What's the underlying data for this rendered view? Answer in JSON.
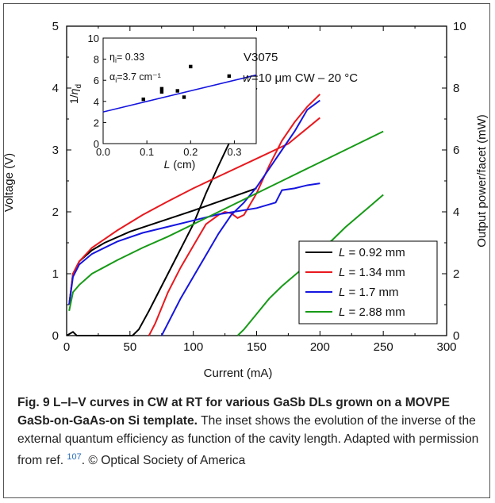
{
  "chart_data": [
    {
      "type": "line",
      "annotation": "V3075",
      "annotation2": "w=10 μm CW – 20 °C",
      "xlabel": "Current (mA)",
      "ylabel_left": "Voltage (V)",
      "ylabel_right": "Output power/facet (mW)",
      "xlim": [
        0,
        300
      ],
      "ylim_left": [
        0,
        5
      ],
      "ylim_right": [
        0,
        10
      ],
      "xticks": [
        "0",
        "50",
        "100",
        "150",
        "200",
        "250",
        "300"
      ],
      "yticks_left": [
        "0",
        "1",
        "2",
        "3",
        "4",
        "5"
      ],
      "yticks_right": [
        "0",
        "2",
        "4",
        "6",
        "8",
        "10"
      ],
      "legend_position": "lower-right",
      "series": [
        {
          "name": "L = 0.92 mm",
          "color": "#000000",
          "voltage": {
            "x": [
              2,
              5,
              10,
              20,
              30,
              50,
              75,
              100,
              125,
              150
            ],
            "y": [
              0.5,
              1.0,
              1.2,
              1.38,
              1.5,
              1.68,
              1.85,
              2.02,
              2.2,
              2.38
            ]
          },
          "power": {
            "x": [
              0,
              5,
              8,
              52,
              57,
              65,
              80,
              90,
              100,
              110,
              120,
              135,
              150
            ],
            "y": [
              0.0,
              0.12,
              0.0,
              0.0,
              0.2,
              0.8,
              2.0,
              2.8,
              3.6,
              4.6,
              5.5,
              6.8,
              8.0
            ]
          }
        },
        {
          "name": "L = 1.34 mm",
          "color": "#e8191e",
          "voltage": {
            "x": [
              2,
              5,
              10,
              20,
              40,
              60,
              80,
              100,
              125,
              150,
              175,
              200
            ],
            "y": [
              0.5,
              1.0,
              1.2,
              1.42,
              1.7,
              1.95,
              2.17,
              2.38,
              2.62,
              2.86,
              3.1,
              3.52
            ]
          },
          "power": {
            "x": [
              65,
              70,
              80,
              90,
              100,
              110,
              120,
              125,
              130,
              135,
              140,
              150,
              160,
              170,
              180,
              190,
              200
            ],
            "y": [
              0.0,
              0.4,
              1.4,
              2.2,
              2.9,
              3.6,
              3.9,
              4.0,
              3.95,
              3.8,
              3.9,
              4.6,
              5.5,
              6.3,
              6.9,
              7.4,
              7.8
            ]
          }
        },
        {
          "name": "L = 1.7 mm",
          "color": "#1515e0",
          "voltage": {
            "x": [
              2,
              5,
              10,
              20,
              40,
              60,
              80,
              100,
              120,
              150,
              165,
              170,
              180,
              190,
              200
            ],
            "y": [
              0.5,
              0.95,
              1.15,
              1.32,
              1.52,
              1.66,
              1.76,
              1.86,
              1.96,
              2.06,
              2.15,
              2.35,
              2.38,
              2.43,
              2.46
            ]
          },
          "power": {
            "x": [
              75,
              80,
              90,
              100,
              110,
              120,
              130,
              140,
              150,
              160,
              170,
              180,
              190,
              200
            ],
            "y": [
              0.0,
              0.4,
              1.2,
              1.9,
              2.6,
              3.3,
              3.9,
              4.3,
              4.8,
              5.4,
              6.0,
              6.6,
              7.3,
              7.6
            ]
          }
        },
        {
          "name": "L = 2.88 mm",
          "color": "#169a16",
          "voltage": {
            "x": [
              2,
              5,
              10,
              20,
              40,
              60,
              80,
              100,
              125,
              150,
              175,
              200,
              225,
              250
            ],
            "y": [
              0.4,
              0.7,
              0.82,
              1.0,
              1.22,
              1.42,
              1.6,
              1.8,
              2.05,
              2.3,
              2.55,
              2.8,
              3.05,
              3.3
            ]
          },
          "power": {
            "x": [
              135,
              140,
              150,
              160,
              170,
              180,
              190,
              200,
              210,
              220,
              230,
              240,
              250
            ],
            "y": [
              0.0,
              0.2,
              0.7,
              1.2,
              1.6,
              1.95,
              2.3,
              2.75,
              3.1,
              3.5,
              3.85,
              4.2,
              4.55
            ]
          }
        }
      ]
    },
    {
      "type": "scatter",
      "ylabel": "1/η_d",
      "xlabel": "L (cm)",
      "xlim": [
        0.0,
        0.35
      ],
      "ylim": [
        0,
        10
      ],
      "xticks": [
        "0.0",
        "0.1",
        "0.2",
        "0.3"
      ],
      "yticks": [
        "0",
        "2",
        "4",
        "6",
        "8",
        "10"
      ],
      "annotation_eta": "η",
      "annotation_eta_sub": "i",
      "annotation_eta_value": "= 0.33",
      "annotation_alpha": "α",
      "annotation_alpha_sub": "i",
      "annotation_alpha_value": "=3.7 cm⁻¹",
      "points": {
        "x": [
          0.092,
          0.134,
          0.134,
          0.17,
          0.185,
          0.2,
          0.288
        ],
        "y": [
          4.2,
          5.2,
          4.9,
          5.0,
          4.4,
          7.3,
          6.4
        ]
      },
      "fit": {
        "x": [
          0.0,
          0.35
        ],
        "y": [
          3.0,
          6.5
        ]
      }
    }
  ],
  "caption": {
    "bold": "Fig. 9 L–I–V curves in CW at RT for various GaSb DLs grown on a MOVPE GaSb-on-GaAs-on Si template.",
    "text": " The inset shows the evolution of the inverse of the external quantum efficiency as function of the cavity length. Adapted with permission from ref. ",
    "ref": "107",
    "text2": ". © Optical Society of America"
  }
}
